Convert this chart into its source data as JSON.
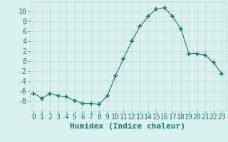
{
  "x": [
    0,
    1,
    2,
    3,
    4,
    5,
    6,
    7,
    8,
    9,
    10,
    11,
    12,
    13,
    14,
    15,
    16,
    17,
    18,
    19,
    20,
    21,
    22,
    23
  ],
  "y": [
    -6.5,
    -7.5,
    -6.5,
    -7.0,
    -7.2,
    -8.0,
    -8.5,
    -8.5,
    -8.7,
    -7.0,
    -3.0,
    0.5,
    4.0,
    7.0,
    9.0,
    10.5,
    10.7,
    9.0,
    6.5,
    1.5,
    1.5,
    1.2,
    -0.3,
    -2.5
  ],
  "line_color": "#1a7a6e",
  "marker": "+",
  "marker_size": 4,
  "bg_color": "#d8f0ee",
  "grid_color": "#c0d8d4",
  "xlabel": "Humidex (Indice chaleur)",
  "xlim": [
    -0.5,
    23.5
  ],
  "ylim": [
    -10,
    12
  ],
  "yticks": [
    -8,
    -6,
    -4,
    -2,
    0,
    2,
    4,
    6,
    8,
    10
  ],
  "xticks": [
    0,
    1,
    2,
    3,
    4,
    5,
    6,
    7,
    8,
    9,
    10,
    11,
    12,
    13,
    14,
    15,
    16,
    17,
    18,
    19,
    20,
    21,
    22,
    23
  ],
  "tick_color": "#1a7a6e",
  "label_color": "#1a7a6e",
  "font_size": 7,
  "xlabel_size": 8
}
